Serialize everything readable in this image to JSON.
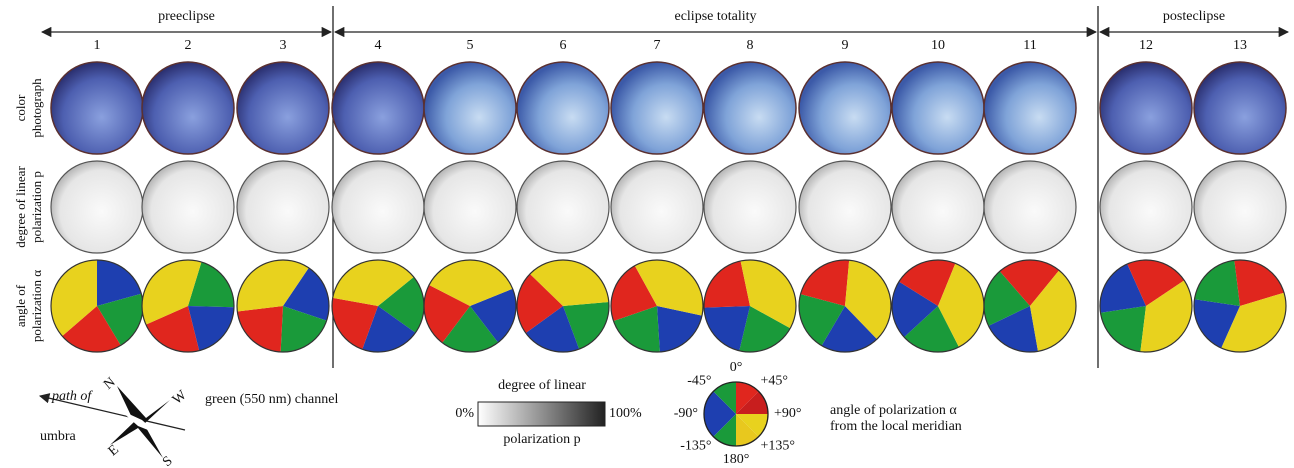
{
  "phases": [
    "preeclipse",
    "eclipse totality",
    "posteclipse"
  ],
  "columns": [
    "1",
    "2",
    "3",
    "4",
    "5",
    "6",
    "7",
    "8",
    "9",
    "10",
    "11",
    "12",
    "13"
  ],
  "row_labels": [
    [
      "color",
      "photograph"
    ],
    [
      "degree of linear",
      "polarization p"
    ],
    [
      "angle of",
      "polarization α"
    ]
  ],
  "legend": {
    "path": [
      "path of",
      "umbra"
    ],
    "compass": [
      "N",
      "W",
      "E",
      "S"
    ],
    "channel": "green (550 nm) channel",
    "degree": {
      "title": "degree of linear",
      "min": "0%",
      "max": "100%",
      "subtitle": "polarization p"
    },
    "angle_ticks": [
      "0°",
      "+45°",
      "+90°",
      "+135°",
      "180°",
      "-135°",
      "-90°",
      "-45°"
    ],
    "angle_caption": [
      "angle of polarization α",
      "from the local meridian"
    ]
  }
}
